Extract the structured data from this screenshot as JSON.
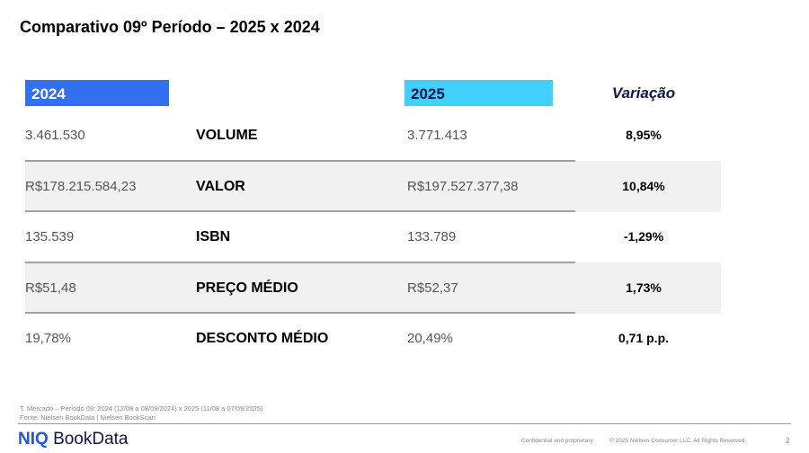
{
  "title": "Comparativo 09º Período – 2025 x 2024",
  "headers": {
    "y2024": "2024",
    "y2025": "2025",
    "variation": "Variação"
  },
  "colors": {
    "y2024": "#3370f0",
    "y2025": "#40d0fb",
    "text_dark": "#10154a"
  },
  "rows": [
    {
      "v2024": "3.461.530",
      "metric": "VOLUME",
      "v2025": "3.771.413",
      "variation": "8,95%"
    },
    {
      "v2024": "R$178.215.584,23",
      "metric": "VALOR",
      "v2025": "R$197.527.377,38",
      "variation": "10,84%"
    },
    {
      "v2024": "135.539",
      "metric": "ISBN",
      "v2025": "133.789",
      "variation": "-1,29%"
    },
    {
      "v2024": "R$51,48",
      "metric": "PREÇO MÉDIO",
      "v2025": "R$52,37",
      "variation": "1,73%"
    },
    {
      "v2024": "19,78%",
      "metric": "DESCONTO MÉDIO",
      "v2025": "20,49%",
      "variation": "0,71 p.p."
    }
  ],
  "footnotes": [
    "T. Mercado – Período 09: 2024 (12/08 a 08/09/2024) x 2025 (11/08 a 07/09/2025)",
    "Fonte: Nielsen BookData | Nielsen BookScan"
  ],
  "footer": {
    "logo_brand": "NIQ",
    "logo_product": "BookData",
    "confidential": "Confidential and proprietary",
    "copyright": "© 2025 Nielsen Consumer LLC. All Rights Reserved.",
    "page": "2"
  }
}
